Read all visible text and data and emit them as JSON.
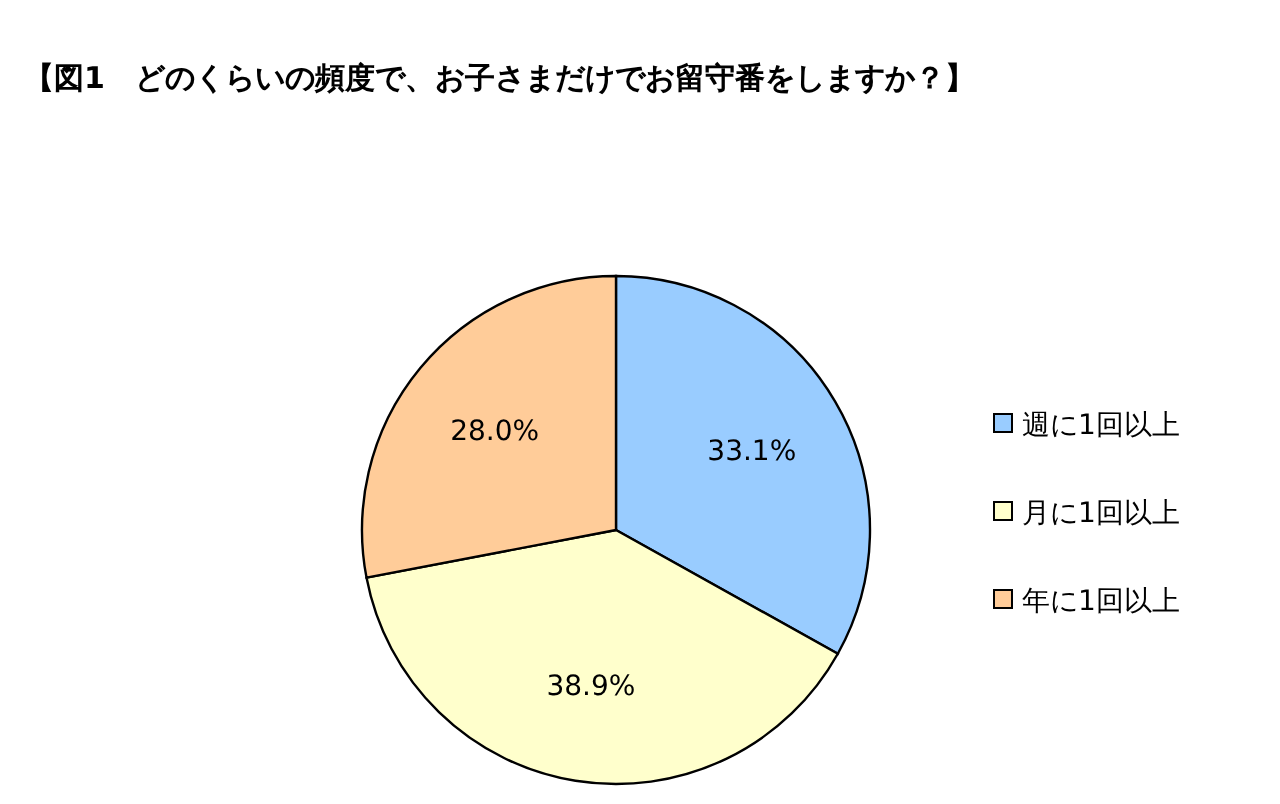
{
  "chart_data": {
    "type": "pie",
    "title": "【図1　どのくらいの頻度で、お子さまだけでお留守番をしますか？】",
    "categories": [
      "週に1回以上",
      "月に1回以上",
      "年に1回以上"
    ],
    "values": [
      33.1,
      38.9,
      28.0
    ],
    "value_labels": [
      "33.1%",
      "38.9%",
      "28.0%"
    ],
    "colors": [
      "#99ccff",
      "#ffffcc",
      "#ffcc99"
    ],
    "legend": "right"
  }
}
